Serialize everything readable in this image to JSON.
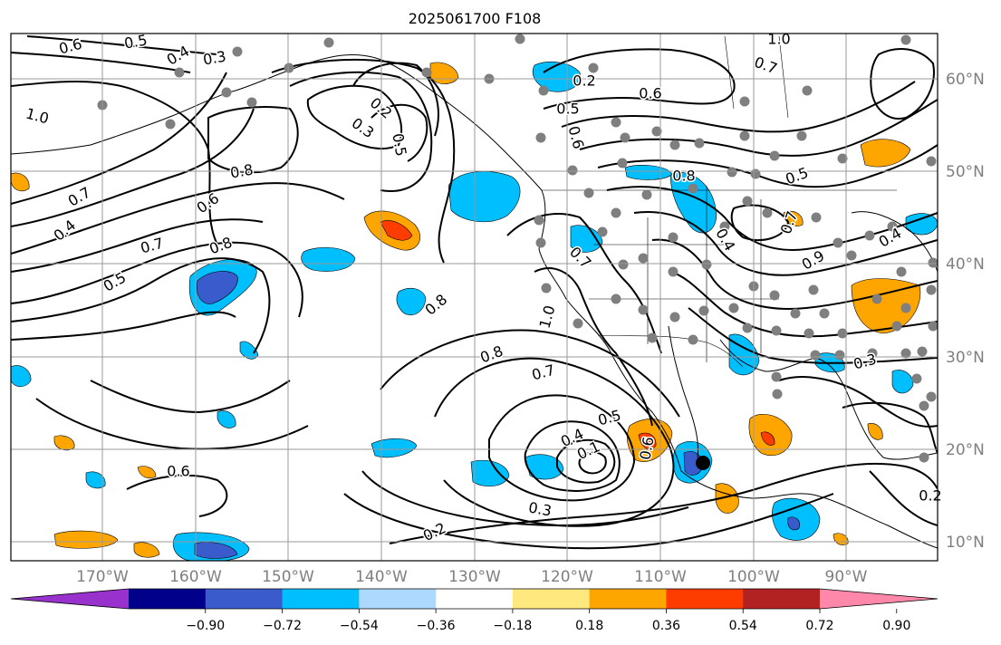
{
  "title": "2025061700 F108",
  "map": {
    "lat_labels": [
      "60°N",
      "50°N",
      "40°N",
      "30°N",
      "20°N",
      "10°N"
    ],
    "lon_labels": [
      "170°W",
      "160°W",
      "150°W",
      "140°W",
      "130°W",
      "120°W",
      "110°W",
      "100°W",
      "90°W"
    ],
    "grid_color": "#9a9a9a",
    "contour_labels": [
      "0.6",
      "0.5",
      "0.4",
      "0.3",
      "1.0",
      "0.8",
      "0.7",
      "0.4",
      "0.5",
      "0.6",
      "0.8",
      "0.7",
      "0.5",
      "0.3",
      "0.6",
      "0.2",
      "0.5",
      "0.6",
      "0.7",
      "1.0",
      "0.5",
      "0.4",
      "0.8",
      "0.6",
      "1.0",
      "0.9",
      "0.8",
      "0.7",
      "0.8",
      "0.7",
      "0.5",
      "0.4",
      "0.1",
      "0.6",
      "0.3",
      "0.2",
      "0.2",
      "0.3",
      "0.7",
      "0.4",
      "0.2"
    ]
  },
  "colorbar": {
    "ticks": [
      "−0.90",
      "−0.72",
      "−0.54",
      "−0.36",
      "−0.18",
      "0.18",
      "0.36",
      "0.54",
      "0.72",
      "0.90"
    ],
    "colors": [
      "#9932cc",
      "#00008b",
      "#3a5bcc",
      "#00bfff",
      "#add8ff",
      "#ffffff",
      "#ffe97f",
      "#ffa500",
      "#ff3c00",
      "#b22222",
      "#ff88aa"
    ]
  }
}
